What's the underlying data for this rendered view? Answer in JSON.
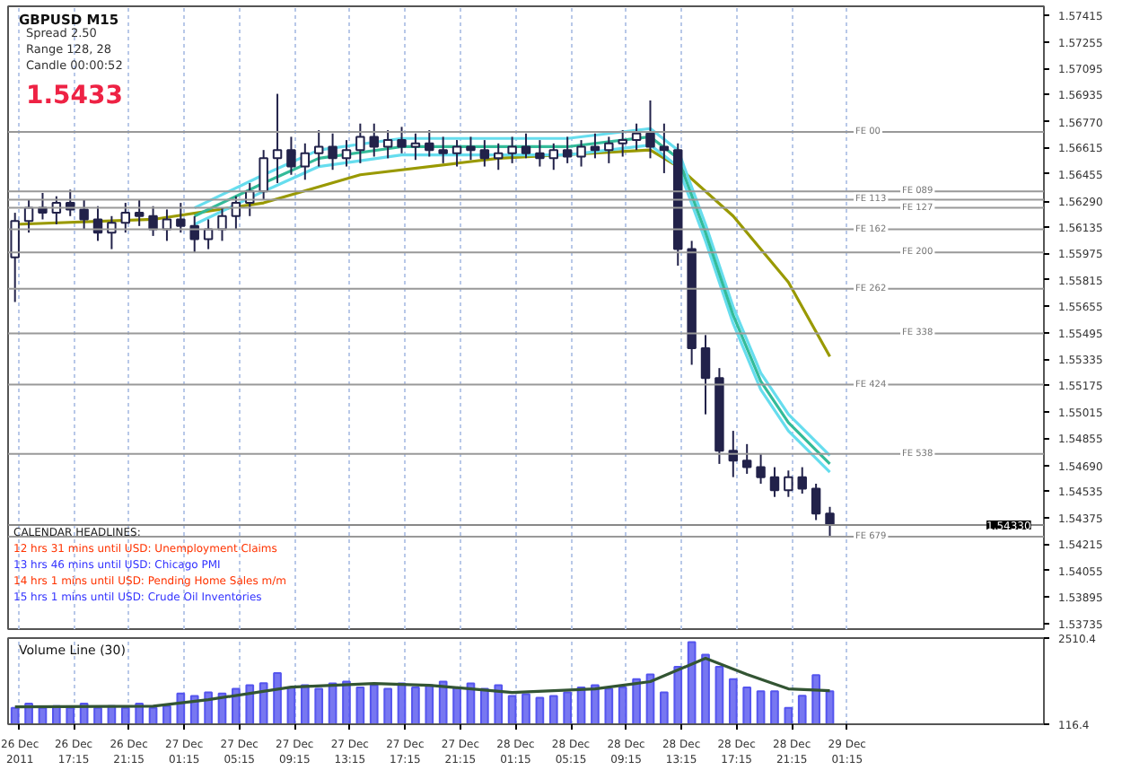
{
  "chart_data": [
    {
      "type": "candlestick",
      "title": "GBPUSD M15",
      "color": "#22224a",
      "annotations": [
        "Spread 2.50",
        "Range 128, 28",
        "Candle 00:00:52",
        "1.5433",
        "CALENDAR HEADLINES:",
        "12 hrs 31 mins until USD: Unemployment Claims",
        "13 hrs 46 mins until USD: Chicago PMI",
        "14 hrs 1 mins until USD: Pending Home Sales m/m",
        "15 hrs 1 mins until USD: Crude Oil Inventories",
        {
          "text": "1.54330",
          "y": 1.5433
        }
      ],
      "x": [
        "2011-12-26T13:00",
        "2011-12-26T14:00",
        "2011-12-26T15:00",
        "2011-12-26T16:00",
        "2011-12-26T17:00",
        "2011-12-26T18:00",
        "2011-12-26T19:00",
        "2011-12-26T20:00",
        "2011-12-26T21:00",
        "2011-12-26T22:00",
        "2011-12-26T23:00",
        "2011-12-27T00:00",
        "2011-12-27T01:00",
        "2011-12-27T02:00",
        "2011-12-27T03:00",
        "2011-12-27T04:00",
        "2011-12-27T05:00",
        "2011-12-27T06:00",
        "2011-12-27T07:00",
        "2011-12-27T08:00",
        "2011-12-27T09:00",
        "2011-12-27T10:00",
        "2011-12-27T11:00",
        "2011-12-27T12:00",
        "2011-12-27T13:00",
        "2011-12-27T14:00",
        "2011-12-27T15:00",
        "2011-12-27T16:00",
        "2011-12-27T17:00",
        "2011-12-27T18:00",
        "2011-12-27T19:00",
        "2011-12-27T20:00",
        "2011-12-27T21:00",
        "2011-12-27T22:00",
        "2011-12-27T23:00",
        "2011-12-28T00:00",
        "2011-12-28T01:00",
        "2011-12-28T02:00",
        "2011-12-28T03:00",
        "2011-12-28T04:00",
        "2011-12-28T05:00",
        "2011-12-28T06:00",
        "2011-12-28T07:00",
        "2011-12-28T08:00",
        "2011-12-28T09:00",
        "2011-12-28T10:00",
        "2011-12-28T11:00",
        "2011-12-28T12:00",
        "2011-12-28T13:00",
        "2011-12-28T14:00",
        "2011-12-28T15:00",
        "2011-12-28T16:00",
        "2011-12-28T17:00",
        "2011-12-28T18:00",
        "2011-12-28T19:00",
        "2011-12-28T20:00",
        "2011-12-28T21:00",
        "2011-12-28T22:00",
        "2011-12-28T23:00",
        "2011-12-29T00:00"
      ],
      "ohlc": [
        [
          1.5595,
          1.5622,
          1.5568,
          1.5617
        ],
        [
          1.5617,
          1.563,
          1.561,
          1.5625
        ],
        [
          1.5625,
          1.5634,
          1.5618,
          1.5622
        ],
        [
          1.5622,
          1.5632,
          1.5615,
          1.5628
        ],
        [
          1.5628,
          1.5636,
          1.562,
          1.5624
        ],
        [
          1.5624,
          1.563,
          1.5612,
          1.5618
        ],
        [
          1.5618,
          1.5626,
          1.5605,
          1.561
        ],
        [
          1.561,
          1.562,
          1.56,
          1.5616
        ],
        [
          1.5616,
          1.5628,
          1.561,
          1.5622
        ],
        [
          1.5622,
          1.563,
          1.5614,
          1.562
        ],
        [
          1.562,
          1.5626,
          1.5608,
          1.5612
        ],
        [
          1.5612,
          1.5624,
          1.5605,
          1.5618
        ],
        [
          1.5618,
          1.5628,
          1.561,
          1.5614
        ],
        [
          1.5614,
          1.562,
          1.5598,
          1.5606
        ],
        [
          1.5606,
          1.5618,
          1.56,
          1.5612
        ],
        [
          1.5612,
          1.5625,
          1.5605,
          1.562
        ],
        [
          1.562,
          1.5632,
          1.5612,
          1.5628
        ],
        [
          1.5628,
          1.564,
          1.562,
          1.5635
        ],
        [
          1.5635,
          1.566,
          1.563,
          1.5655
        ],
        [
          1.5655,
          1.5694,
          1.564,
          1.566
        ],
        [
          1.566,
          1.5668,
          1.5645,
          1.565
        ],
        [
          1.565,
          1.5664,
          1.5642,
          1.5658
        ],
        [
          1.5658,
          1.5672,
          1.565,
          1.5662
        ],
        [
          1.5662,
          1.567,
          1.5648,
          1.5655
        ],
        [
          1.5655,
          1.5666,
          1.565,
          1.566
        ],
        [
          1.566,
          1.5676,
          1.5652,
          1.5668
        ],
        [
          1.5668,
          1.5676,
          1.5656,
          1.5662
        ],
        [
          1.5662,
          1.5672,
          1.5655,
          1.5666
        ],
        [
          1.5666,
          1.5674,
          1.5658,
          1.5662
        ],
        [
          1.5662,
          1.567,
          1.5654,
          1.5664
        ],
        [
          1.5664,
          1.5672,
          1.5656,
          1.566
        ],
        [
          1.566,
          1.5668,
          1.5652,
          1.5658
        ],
        [
          1.5658,
          1.5666,
          1.565,
          1.5662
        ],
        [
          1.5662,
          1.5668,
          1.5654,
          1.566
        ],
        [
          1.566,
          1.5666,
          1.565,
          1.5655
        ],
        [
          1.5655,
          1.5664,
          1.5648,
          1.5658
        ],
        [
          1.5658,
          1.5668,
          1.5652,
          1.5662
        ],
        [
          1.5662,
          1.567,
          1.5655,
          1.5658
        ],
        [
          1.5658,
          1.5666,
          1.565,
          1.5655
        ],
        [
          1.5655,
          1.5664,
          1.5648,
          1.566
        ],
        [
          1.566,
          1.5668,
          1.5652,
          1.5656
        ],
        [
          1.5656,
          1.5666,
          1.565,
          1.5662
        ],
        [
          1.5662,
          1.567,
          1.5655,
          1.566
        ],
        [
          1.566,
          1.5668,
          1.5652,
          1.5664
        ],
        [
          1.5664,
          1.5672,
          1.5656,
          1.5666
        ],
        [
          1.5666,
          1.5676,
          1.566,
          1.567
        ],
        [
          1.567,
          1.569,
          1.5655,
          1.5662
        ],
        [
          1.5662,
          1.5676,
          1.5646,
          1.566
        ],
        [
          1.566,
          1.5664,
          1.559,
          1.56
        ],
        [
          1.56,
          1.5605,
          1.553,
          1.554
        ],
        [
          1.554,
          1.5548,
          1.55,
          1.5522
        ],
        [
          1.5522,
          1.5528,
          1.547,
          1.5478
        ],
        [
          1.5478,
          1.549,
          1.5462,
          1.5472
        ],
        [
          1.5472,
          1.5482,
          1.5464,
          1.5468
        ],
        [
          1.5468,
          1.5476,
          1.5458,
          1.5462
        ],
        [
          1.5462,
          1.5468,
          1.545,
          1.5454
        ],
        [
          1.5454,
          1.5466,
          1.545,
          1.5462
        ],
        [
          1.5462,
          1.5468,
          1.5452,
          1.5455
        ],
        [
          1.5455,
          1.5458,
          1.5436,
          1.544
        ],
        [
          1.544,
          1.5444,
          1.5426,
          1.5433
        ]
      ],
      "series": [
        {
          "type": "line",
          "color": "#999900",
          "x": [
            "2011-12-26T13:00",
            "2011-12-26T23:00",
            "2011-12-27T07:00",
            "2011-12-27T14:00",
            "2011-12-28T00:00",
            "2011-12-28T11:00",
            "2011-12-28T13:00",
            "2011-12-28T17:00",
            "2011-12-28T21:00",
            "2011-12-29T00:00"
          ],
          "values": [
            1.5615,
            1.5618,
            1.5628,
            1.5645,
            1.5655,
            1.566,
            1.565,
            1.562,
            1.558,
            1.5535
          ]
        },
        {
          "type": "line",
          "color": "#66ddee",
          "x": [
            "2011-12-27T02:00",
            "2011-12-27T07:00",
            "2011-12-27T11:00",
            "2011-12-27T17:00",
            "2011-12-28T05:00",
            "2011-12-28T11:00",
            "2011-12-28T13:00",
            "2011-12-28T15:00",
            "2011-12-28T17:00",
            "2011-12-28T19:00",
            "2011-12-28T21:00",
            "2011-12-29T00:00"
          ],
          "values": [
            1.5625,
            1.5645,
            1.566,
            1.5667,
            1.5667,
            1.5673,
            1.566,
            1.5615,
            1.5565,
            1.5525,
            1.55,
            1.5475
          ]
        },
        {
          "type": "line",
          "color": "#66ddee",
          "x": [
            "2011-12-27T02:00",
            "2011-12-27T07:00",
            "2011-12-27T11:00",
            "2011-12-27T17:00",
            "2011-12-28T05:00",
            "2011-12-28T11:00",
            "2011-12-28T13:00",
            "2011-12-28T15:00",
            "2011-12-28T17:00",
            "2011-12-28T19:00",
            "2011-12-28T21:00",
            "2011-12-29T00:00"
          ],
          "values": [
            1.5615,
            1.5635,
            1.565,
            1.5657,
            1.5657,
            1.5663,
            1.565,
            1.5605,
            1.5555,
            1.5515,
            1.549,
            1.5465
          ]
        },
        {
          "type": "line",
          "color": "#33bb99",
          "x": [
            "2011-12-27T02:00",
            "2011-12-27T07:00",
            "2011-12-27T11:00",
            "2011-12-27T17:00",
            "2011-12-28T05:00",
            "2011-12-28T11:00",
            "2011-12-28T13:00",
            "2011-12-28T15:00",
            "2011-12-28T17:00",
            "2011-12-28T19:00",
            "2011-12-28T21:00",
            "2011-12-29T00:00"
          ],
          "values": [
            1.562,
            1.564,
            1.5655,
            1.5662,
            1.5662,
            1.5668,
            1.5655,
            1.561,
            1.556,
            1.552,
            1.5495,
            1.547
          ]
        }
      ],
      "ref_lines": [
        {
          "axis": "y",
          "value": 1.5671,
          "label": "FE 00",
          "color": "#999999"
        },
        {
          "axis": "y",
          "value": 1.5635,
          "label": "FE 089",
          "color": "#999999"
        },
        {
          "axis": "y",
          "value": 1.563,
          "label": "FE 113",
          "color": "#999999"
        },
        {
          "axis": "y",
          "value": 1.5625,
          "label": "FE 127",
          "color": "#999999"
        },
        {
          "axis": "y",
          "value": 1.5612,
          "label": "FE 162",
          "color": "#999999"
        },
        {
          "axis": "y",
          "value": 1.5598,
          "label": "FE 200",
          "color": "#999999"
        },
        {
          "axis": "y",
          "value": 1.5576,
          "label": "FE 262",
          "color": "#999999"
        },
        {
          "axis": "y",
          "value": 1.5549,
          "label": "FE 338",
          "color": "#999999"
        },
        {
          "axis": "y",
          "value": 1.5518,
          "label": "FE 424",
          "color": "#999999"
        },
        {
          "axis": "y",
          "value": 1.5476,
          "label": "FE 538",
          "color": "#999999"
        },
        {
          "axis": "y",
          "value": 1.5426,
          "label": "FE 679",
          "color": "#999999"
        },
        {
          "axis": "y",
          "value": 1.5433,
          "color": "#888888"
        }
      ],
      "xlim": [
        "2011-12-26T12:30",
        "2011-12-29T15:30"
      ],
      "xticks": [
        {
          "value": "2011-12-26T13:15",
          "label": null
        },
        {
          "value": "2011-12-26T17:15",
          "label": null
        },
        {
          "value": "2011-12-26T21:15",
          "label": null
        },
        {
          "value": "2011-12-27T01:15",
          "label": null
        },
        {
          "value": "2011-12-27T05:15",
          "label": null
        },
        {
          "value": "2011-12-27T09:15",
          "label": null
        },
        {
          "value": "2011-12-27T13:15",
          "label": null
        },
        {
          "value": "2011-12-27T17:15",
          "label": null
        },
        {
          "value": "2011-12-27T21:15",
          "label": null
        },
        {
          "value": "2011-12-28T01:15",
          "label": null
        },
        {
          "value": "2011-12-28T05:15",
          "label": null
        },
        {
          "value": "2011-12-28T09:15",
          "label": null
        },
        {
          "value": "2011-12-28T13:15",
          "label": null
        },
        {
          "value": "2011-12-28T17:15",
          "label": null
        },
        {
          "value": "2011-12-28T21:15",
          "label": null
        },
        {
          "value": "2011-12-29T01:15",
          "label": null
        }
      ],
      "ylim": [
        1.537,
        1.5747
      ],
      "yticks": [
        {
          "value": 1.57415,
          "label": "1.57415"
        },
        {
          "value": 1.57255,
          "label": "1.57255"
        },
        {
          "value": 1.57095,
          "label": "1.57095"
        },
        {
          "value": 1.56935,
          "label": "1.56935"
        },
        {
          "value": 1.5677,
          "label": "1.56770"
        },
        {
          "value": 1.56615,
          "label": "1.56615"
        },
        {
          "value": 1.56455,
          "label": "1.56455"
        },
        {
          "value": 1.5629,
          "label": "1.56290"
        },
        {
          "value": 1.56135,
          "label": "1.56135"
        },
        {
          "value": 1.55975,
          "label": "1.55975"
        },
        {
          "value": 1.55815,
          "label": "1.55815"
        },
        {
          "value": 1.55655,
          "label": "1.55655"
        },
        {
          "value": 1.55495,
          "label": "1.55495"
        },
        {
          "value": 1.55335,
          "label": "1.55335"
        },
        {
          "value": 1.55175,
          "label": "1.55175"
        },
        {
          "value": 1.55015,
          "label": "1.55015"
        },
        {
          "value": 1.54855,
          "label": "1.54855"
        },
        {
          "value": 1.5469,
          "label": "1.54690"
        },
        {
          "value": 1.54535,
          "label": "1.54535"
        },
        {
          "value": 1.54375,
          "label": "1.54375"
        },
        {
          "value": 1.54215,
          "label": "1.54215"
        },
        {
          "value": 1.54055,
          "label": "1.54055"
        },
        {
          "value": 1.53895,
          "label": "1.53895"
        },
        {
          "value": 1.53735,
          "label": "1.53735"
        }
      ],
      "grid": "x",
      "tick_labels": "y"
    },
    {
      "type": "bar",
      "title": "Volume Line (30)",
      "x": [
        "2011-12-26T13:00",
        "2011-12-26T14:00",
        "2011-12-26T15:00",
        "2011-12-26T16:00",
        "2011-12-26T17:00",
        "2011-12-26T18:00",
        "2011-12-26T19:00",
        "2011-12-26T20:00",
        "2011-12-26T21:00",
        "2011-12-26T22:00",
        "2011-12-26T23:00",
        "2011-12-27T00:00",
        "2011-12-27T01:00",
        "2011-12-27T02:00",
        "2011-12-27T03:00",
        "2011-12-27T04:00",
        "2011-12-27T05:00",
        "2011-12-27T06:00",
        "2011-12-27T07:00",
        "2011-12-27T08:00",
        "2011-12-27T09:00",
        "2011-12-27T10:00",
        "2011-12-27T11:00",
        "2011-12-27T12:00",
        "2011-12-27T13:00",
        "2011-12-27T14:00",
        "2011-12-27T15:00",
        "2011-12-27T16:00",
        "2011-12-27T17:00",
        "2011-12-27T18:00",
        "2011-12-27T19:00",
        "2011-12-27T20:00",
        "2011-12-27T21:00",
        "2011-12-27T22:00",
        "2011-12-27T23:00",
        "2011-12-28T00:00",
        "2011-12-28T01:00",
        "2011-12-28T02:00",
        "2011-12-28T03:00",
        "2011-12-28T04:00",
        "2011-12-28T05:00",
        "2011-12-28T06:00",
        "2011-12-28T07:00",
        "2011-12-28T08:00",
        "2011-12-28T09:00",
        "2011-12-28T10:00",
        "2011-12-28T11:00",
        "2011-12-28T12:00",
        "2011-12-28T13:00",
        "2011-12-28T14:00",
        "2011-12-28T15:00",
        "2011-12-28T16:00",
        "2011-12-28T17:00",
        "2011-12-28T18:00",
        "2011-12-28T19:00",
        "2011-12-28T20:00",
        "2011-12-28T21:00",
        "2011-12-28T22:00",
        "2011-12-28T23:00",
        "2011-12-29T00:00"
      ],
      "series": [
        {
          "type": "bar",
          "color": "#5555ee",
          "values": [
            570,
            690,
            570,
            620,
            570,
            690,
            570,
            620,
            570,
            690,
            570,
            620,
            970,
            900,
            1000,
            970,
            1100,
            1200,
            1260,
            1540,
            1140,
            1200,
            1100,
            1250,
            1300,
            1140,
            1200,
            1100,
            1250,
            1140,
            1200,
            1300,
            1140,
            1250,
            1100,
            1200,
            900,
            950,
            850,
            900,
            1000,
            1140,
            1200,
            1100,
            1140,
            1370,
            1500,
            1000,
            1710,
            2400,
            2050,
            1710,
            1370,
            1140,
            1030,
            1030,
            570,
            910,
            1480,
            1030
          ]
        },
        {
          "type": "line",
          "color": "#335533",
          "x": [
            "2011-12-26T13:00",
            "2011-12-26T23:00",
            "2011-12-27T03:00",
            "2011-12-27T09:00",
            "2011-12-27T15:00",
            "2011-12-27T19:00",
            "2011-12-28T01:00",
            "2011-12-28T07:00",
            "2011-12-28T11:00",
            "2011-12-28T15:00",
            "2011-12-28T18:00",
            "2011-12-28T21:00",
            "2011-12-29T00:00"
          ],
          "values": [
            600,
            620,
            800,
            1150,
            1250,
            1200,
            1000,
            1100,
            1300,
            1950,
            1500,
            1100,
            1050
          ]
        }
      ],
      "xlim": [
        "2011-12-26T12:30",
        "2011-12-29T15:30"
      ],
      "xticks": [
        {
          "value": "2011-12-26T13:15",
          "label": "26 Dec 2011"
        },
        {
          "value": "2011-12-26T17:15",
          "label": "26 Dec 17:15"
        },
        {
          "value": "2011-12-26T21:15",
          "label": "26 Dec 21:15"
        },
        {
          "value": "2011-12-27T01:15",
          "label": "27 Dec 01:15"
        },
        {
          "value": "2011-12-27T05:15",
          "label": "27 Dec 05:15"
        },
        {
          "value": "2011-12-27T09:15",
          "label": "27 Dec 09:15"
        },
        {
          "value": "2011-12-27T13:15",
          "label": "27 Dec 13:15"
        },
        {
          "value": "2011-12-27T17:15",
          "label": "27 Dec 17:15"
        },
        {
          "value": "2011-12-27T21:15",
          "label": "27 Dec 21:15"
        },
        {
          "value": "2011-12-28T01:15",
          "label": "28 Dec 01:15"
        },
        {
          "value": "2011-12-28T05:15",
          "label": "28 Dec 05:15"
        },
        {
          "value": "2011-12-28T09:15",
          "label": "28 Dec 09:15"
        },
        {
          "value": "2011-12-28T13:15",
          "label": "28 Dec 13:15"
        },
        {
          "value": "2011-12-28T17:15",
          "label": "28 Dec 17:15"
        },
        {
          "value": "2011-12-28T21:15",
          "label": "28 Dec 21:15"
        },
        {
          "value": "2011-12-29T01:15",
          "label": "29 Dec 01:15"
        }
      ],
      "ylim": [
        116.4,
        2510.4
      ],
      "yticks": [
        2510.4,
        116.4
      ],
      "grid": "x"
    }
  ]
}
